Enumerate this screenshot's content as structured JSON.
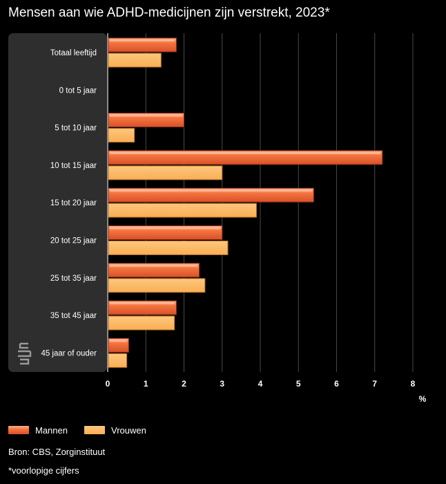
{
  "chart_data": {
    "type": "bar",
    "orientation": "horizontal",
    "title": "Mensen aan wie ADHD-medicijnen zijn verstrekt, 2023*",
    "xlabel": "%",
    "xlim": [
      0,
      8
    ],
    "xticks": [
      "0",
      "1",
      "2",
      "3",
      "4",
      "5",
      "6",
      "7",
      "8"
    ],
    "grid": true,
    "legend_position": "bottom-left",
    "categories": [
      "Totaal leeftijd",
      "0 tot 5 jaar",
      "5 tot 10 jaar",
      "10 tot 15 jaar",
      "15 tot 20 jaar",
      "20 tot 25 jaar",
      "25 tot 35 jaar",
      "35 tot 45 jaar",
      "45 jaar of ouder"
    ],
    "series": [
      {
        "name": "Mannen",
        "color": "#f06d3c",
        "values": [
          1.8,
          0,
          2.0,
          7.2,
          5.4,
          3.0,
          2.4,
          1.8,
          0.55
        ]
      },
      {
        "name": "Vrouwen",
        "color": "#fcb760",
        "values": [
          1.4,
          0,
          0.7,
          3.0,
          3.9,
          3.15,
          2.55,
          1.75,
          0.5
        ]
      }
    ]
  },
  "footer": {
    "source": "Bron: CBS, Zorginstituut",
    "note": "*voorlopige cijfers"
  }
}
